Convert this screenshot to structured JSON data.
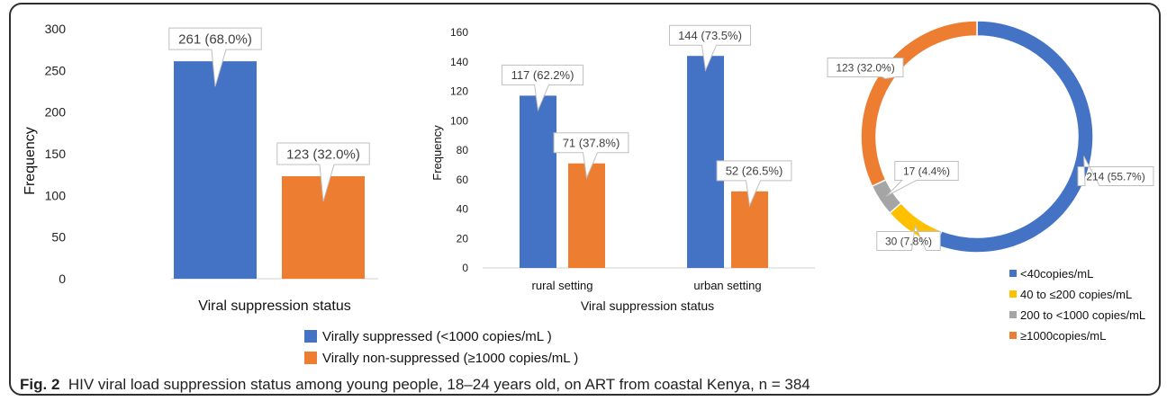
{
  "caption": {
    "label": "Fig. 2",
    "text": "HIV viral load suppression status among young people, 18–24 years old, on ART from coastal Kenya, n = 384"
  },
  "legend": {
    "suppressed": "Virally suppressed (<1000 copies/mL )",
    "non_suppressed": "Virally non-suppressed  (≥1000 copies/mL )"
  },
  "colors": {
    "blue": "#4472c4",
    "orange": "#ed7d31",
    "yellow": "#ffc000",
    "gray": "#a5a5a5"
  },
  "chart_data": [
    {
      "type": "bar",
      "categories": [
        "Virally suppressed",
        "Virally non-suppressed"
      ],
      "values": [
        261,
        123
      ],
      "data_labels": [
        "261 (68.0%)",
        "123 (32.0%)"
      ],
      "xlabel": "Viral suppression status",
      "ylabel": "Frequency",
      "ylim": [
        0,
        300
      ],
      "yticks": [
        "0",
        "50",
        "100",
        "150",
        "200",
        "250",
        "300"
      ]
    },
    {
      "type": "bar",
      "categories": [
        "rural setting",
        "urban setting"
      ],
      "series": [
        {
          "name": "Virally suppressed (<1000 copies/mL )",
          "values": [
            117,
            144
          ],
          "labels": [
            "117 (62.2%)",
            "144 (73.5%)"
          ]
        },
        {
          "name": "Virally non-suppressed  (≥1000 copies/mL )",
          "values": [
            71,
            52
          ],
          "labels": [
            "71 (37.8%)",
            "52 (26.5%)"
          ]
        }
      ],
      "xlabel": "Viral suppression status",
      "ylabel": "Frequency",
      "ylim": [
        0,
        160
      ],
      "yticks": [
        "0",
        "20",
        "40",
        "60",
        "80",
        "100",
        "120",
        "140",
        "160"
      ]
    },
    {
      "type": "pie",
      "style": "donut",
      "labels": [
        "<40copies/mL",
        "40 to ≤200 copies/mL",
        "200 to <1000 copies/mL",
        "≥1000copies/mL"
      ],
      "values": [
        214,
        30,
        17,
        123
      ],
      "data_labels": [
        "214 (55.7%)",
        "30 (7.8%)",
        "17 (4.4%)",
        "123 (32.0%)"
      ],
      "legend_position": "bottom-right"
    }
  ]
}
